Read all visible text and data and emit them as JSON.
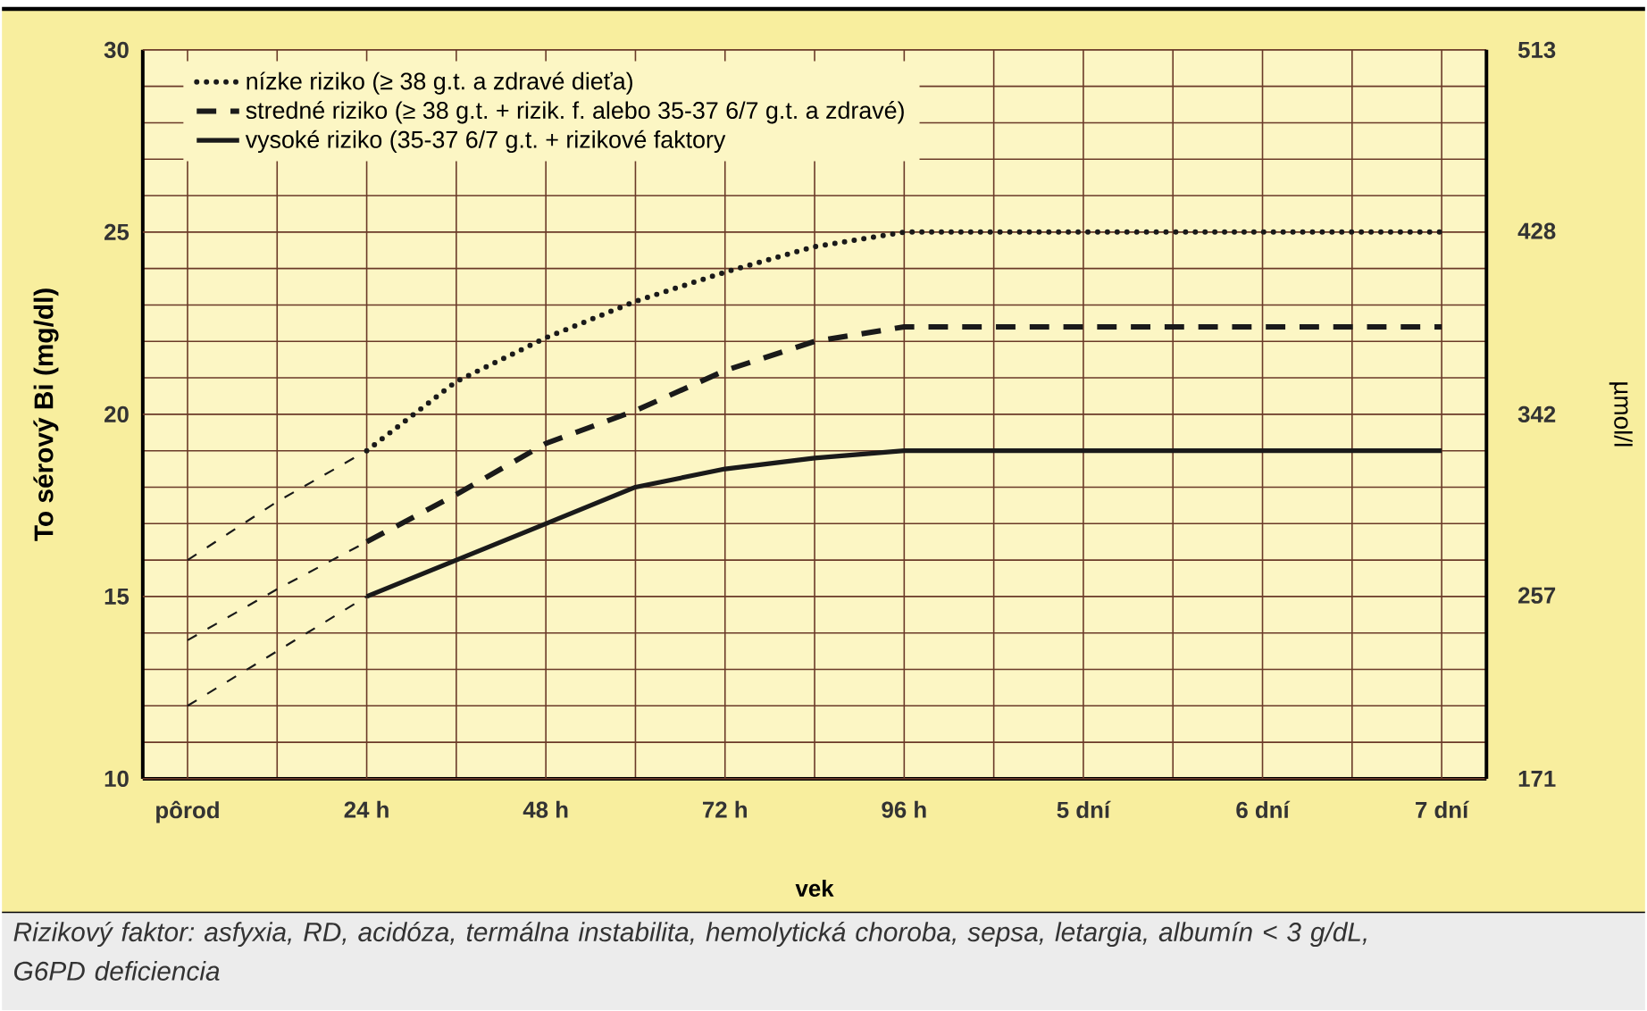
{
  "chart_data": {
    "type": "line",
    "xlabel": "vek",
    "ylabel": "To sérový Bi (mg/dl)",
    "y2label": "µmol/l",
    "categories": [
      "pôrod",
      null,
      "24 h",
      null,
      "48 h",
      null,
      "72 h",
      null,
      "96 h",
      null,
      "5 dní",
      null,
      "6 dní",
      null,
      "7 dní"
    ],
    "ylim": [
      10,
      30
    ],
    "yticks": [
      10,
      {
        "value": 11,
        "label": null
      },
      {
        "value": 12,
        "label": null
      },
      {
        "value": 13,
        "label": null
      },
      {
        "value": 14,
        "label": null
      },
      15,
      {
        "value": 16,
        "label": null
      },
      {
        "value": 17,
        "label": null
      },
      {
        "value": 18,
        "label": null
      },
      {
        "value": 19,
        "label": null
      },
      20,
      {
        "value": 21,
        "label": null
      },
      {
        "value": 22,
        "label": null
      },
      {
        "value": 23,
        "label": null
      },
      {
        "value": 24,
        "label": null
      },
      25,
      {
        "value": 26,
        "label": null
      },
      {
        "value": 27,
        "label": null
      },
      {
        "value": 28,
        "label": null
      },
      {
        "value": 29,
        "label": null
      },
      30
    ],
    "y2lim": [
      171,
      513
    ],
    "y2ticks": [
      171,
      257,
      342,
      428,
      513
    ],
    "grid": true,
    "legend": "top left",
    "marker": "none",
    "series": [
      {
        "name": "nízke riziko (≥ 38 g.t. a zdravé dieťa)",
        "color": "#1a1a1a",
        "line_style": "dotted",
        "values": [
          null,
          null,
          19,
          20.9,
          22.1,
          23.1,
          23.9,
          24.6,
          25,
          25,
          25,
          25,
          25,
          25,
          25
        ]
      },
      {
        "name": "stredné riziko (≥ 38 g.t. + rizik. f. alebo 35-37 6/7 g.t. a zdravé)",
        "color": "#1a1a1a",
        "line_style": "dashed",
        "values": [
          null,
          null,
          16.5,
          17.8,
          19.2,
          20.1,
          21.2,
          22,
          22.4,
          22.4,
          22.4,
          22.4,
          22.4,
          22.4,
          22.4
        ]
      },
      {
        "name": "vysoké riziko (35-37 6/7 g.t. + rizikové faktory",
        "color": "#1a1a1a",
        "line_style": "solid",
        "values": [
          null,
          null,
          15,
          16,
          17,
          18,
          18.5,
          18.8,
          19,
          19,
          19,
          19,
          19,
          19,
          19
        ]
      },
      {
        "color": "#1a1a1a",
        "line_style": "dashed",
        "values": [
          16,
          17.6,
          19,
          null,
          null,
          null,
          null,
          null,
          null,
          null,
          null,
          null,
          null,
          null,
          null
        ]
      },
      {
        "color": "#1a1a1a",
        "line_style": "dashed",
        "values": [
          13.8,
          15.2,
          16.5,
          null,
          null,
          null,
          null,
          null,
          null,
          null,
          null,
          null,
          null,
          null,
          null
        ]
      },
      {
        "color": "#1a1a1a",
        "line_style": "dashed",
        "values": [
          12,
          13.5,
          15,
          null,
          null,
          null,
          null,
          null,
          null,
          null,
          null,
          null,
          null,
          null,
          null
        ]
      }
    ],
    "annotations": [
      "*Rizikový faktor: asfyxia, RD, acidóza, termálna instabilita, hemolytická choroba, sepsa, letargia, albumín < 3 g/dL, G6PD deficiencia*"
    ]
  }
}
